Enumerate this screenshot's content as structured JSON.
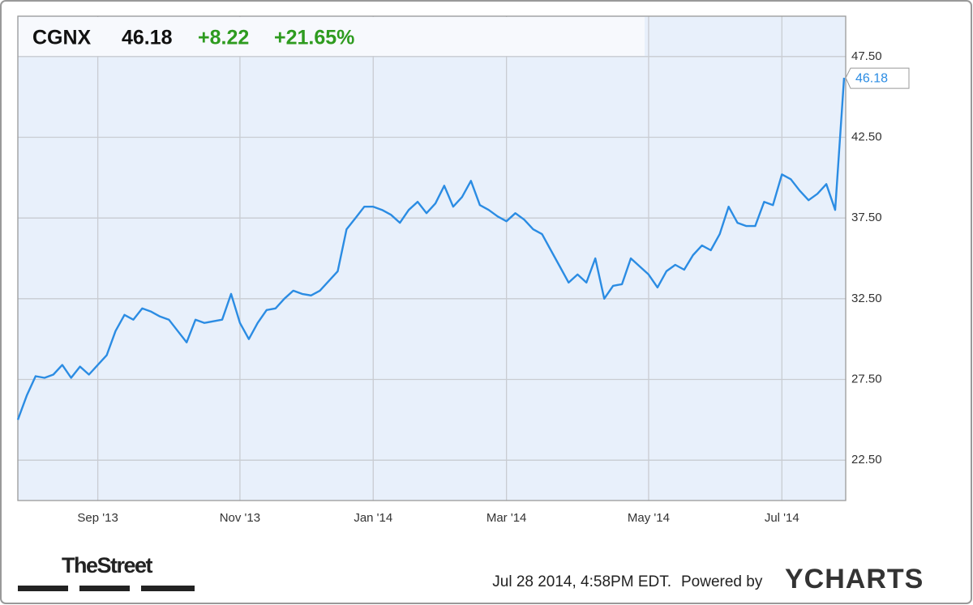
{
  "chart_data": {
    "type": "line",
    "ticker": "CGNX",
    "change": "+8.22",
    "change_pct": "+21.65%",
    "timestamp": "Jul 28 2014, 4:58PM EDT.",
    "powered_by": "Powered by",
    "brand": "YCHARTS",
    "partner": "TheStreet",
    "categories": [
      null,
      null,
      null,
      null,
      null,
      null,
      null,
      null,
      null,
      "Sep '13",
      null,
      null,
      null,
      null,
      null,
      null,
      null,
      null,
      null,
      null,
      null,
      null,
      null,
      null,
      null,
      "Nov '13",
      null,
      null,
      null,
      null,
      null,
      null,
      null,
      null,
      null,
      null,
      null,
      null,
      null,
      null,
      "Jan '14",
      null,
      null,
      null,
      null,
      null,
      null,
      null,
      null,
      null,
      null,
      null,
      null,
      null,
      null,
      "Mar '14",
      null,
      null,
      null,
      null,
      null,
      null,
      null,
      null,
      null,
      null,
      null,
      null,
      null,
      null,
      null,
      "May '14",
      null,
      null,
      null,
      null,
      null,
      null,
      null,
      null,
      null,
      null,
      null,
      null,
      null,
      null,
      "Jul '14",
      null,
      null,
      null,
      null,
      null,
      null,
      null
    ],
    "series": [
      {
        "name": "CGNX",
        "color": "#2b8ce3",
        "values": [
          25.0,
          26.5,
          27.7,
          27.6,
          27.8,
          28.4,
          27.6,
          28.3,
          27.8,
          28.4,
          29.0,
          30.5,
          31.5,
          31.2,
          31.9,
          31.7,
          31.4,
          31.2,
          30.5,
          29.8,
          31.2,
          31.0,
          31.1,
          31.2,
          32.8,
          31.0,
          30.0,
          31.0,
          31.8,
          31.9,
          32.5,
          33.0,
          32.8,
          32.7,
          33.0,
          33.6,
          34.2,
          36.8,
          37.5,
          38.2,
          38.2,
          38.0,
          37.7,
          37.2,
          38.0,
          38.5,
          37.8,
          38.4,
          39.5,
          38.2,
          38.8,
          39.8,
          38.3,
          38.0,
          37.6,
          37.3,
          37.8,
          37.4,
          36.8,
          36.5,
          35.5,
          34.5,
          33.5,
          34.0,
          33.5,
          35.0,
          32.5,
          33.3,
          33.4,
          35.0,
          34.5,
          34.0,
          33.2,
          34.2,
          34.6,
          34.3,
          35.2,
          35.8,
          35.5,
          36.5,
          38.2,
          37.2,
          37.0,
          37.0,
          38.5,
          38.3,
          40.2,
          39.9,
          39.2,
          38.6,
          39.0,
          39.6,
          38.0,
          46.18
        ]
      }
    ],
    "ylim": [
      20,
      50
    ],
    "yticks": [
      {
        "value": 22.5,
        "label": "22.50"
      },
      {
        "value": 27.5,
        "label": "27.50"
      },
      {
        "value": 32.5,
        "label": "32.50"
      },
      {
        "value": 37.5,
        "label": "37.50"
      },
      {
        "value": 42.5,
        "label": "42.50"
      },
      {
        "value": 47.5,
        "label": "47.50"
      }
    ],
    "grid": true,
    "background": "#e8f0fb"
  }
}
